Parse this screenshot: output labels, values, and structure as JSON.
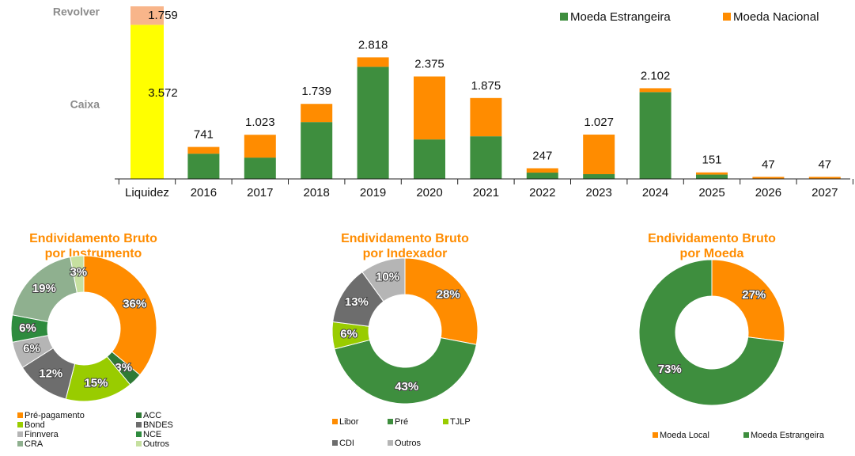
{
  "chart_data": [
    {
      "type": "bar",
      "categories": [
        "Liquidez",
        "2016",
        "2017",
        "2018",
        "2019",
        "2020",
        "2021",
        "2022",
        "2023",
        "2024",
        "2025",
        "2026",
        "2027"
      ],
      "series": [
        {
          "name": "Moeda Estrangeira",
          "color": "#3e8e3e",
          "values": [
            null,
            585,
            494,
            1318,
            2598,
            915,
            988,
            146,
            110,
            2013,
            100,
            0,
            0
          ]
        },
        {
          "name": "Moeda Nacional",
          "color": "#ff8c00",
          "values": [
            null,
            156,
            529,
            421,
            220,
            1460,
            887,
            101,
            917,
            89,
            51,
            47,
            47
          ]
        }
      ],
      "total_labels": [
        null,
        "741",
        "1.023",
        "1.739",
        "2.818",
        "2.375",
        "1.875",
        "247",
        "1.027",
        "2.102",
        "151",
        "47",
        "47"
      ],
      "liquidity": {
        "labels": [
          "Caixa",
          "Revolver"
        ],
        "values": [
          3572,
          1759
        ],
        "value_labels": [
          "3.572",
          "1.759"
        ],
        "colors": [
          "#ffff00",
          "#f8b58a"
        ]
      },
      "ylim": [
        0,
        4000
      ],
      "legend": "top-right"
    },
    {
      "type": "donut",
      "title": [
        "Endividamento Bruto",
        "por Instrumento"
      ],
      "categories": [
        "Pré-pagamento",
        "ACC",
        "Bond",
        "BNDES",
        "Finnvera",
        "NCE",
        "CRA",
        "Outros"
      ],
      "values": [
        36,
        3,
        15,
        12,
        6,
        6,
        19,
        3
      ],
      "value_labels": [
        "36%",
        "3%",
        "15%",
        "12%",
        "6%",
        "6%",
        "19%",
        "3%"
      ],
      "colors": [
        "#ff8c00",
        "#2f7a35",
        "#99cc00",
        "#6d6d6d",
        "#b5b5b5",
        "#2e8b3e",
        "#8fb08f",
        "#c6e0a0"
      ]
    },
    {
      "type": "donut",
      "title": [
        "Endividamento Bruto",
        "por Indexador"
      ],
      "categories": [
        "Libor",
        "Pré",
        "TJLP",
        "CDI",
        "Outros"
      ],
      "values": [
        28,
        43,
        6,
        13,
        10
      ],
      "value_labels": [
        "28%",
        "43%",
        "6%",
        "13%",
        "10%"
      ],
      "colors": [
        "#ff8c00",
        "#3e8e3e",
        "#99cc00",
        "#6d6d6d",
        "#b5b5b5"
      ]
    },
    {
      "type": "donut",
      "title": [
        "Endividamento Bruto",
        "por Moeda"
      ],
      "categories": [
        "Moeda Local",
        "Moeda Estrangeira"
      ],
      "values": [
        27,
        73
      ],
      "value_labels": [
        "27%",
        "73%"
      ],
      "colors": [
        "#ff8c00",
        "#3e8e3e"
      ]
    }
  ]
}
